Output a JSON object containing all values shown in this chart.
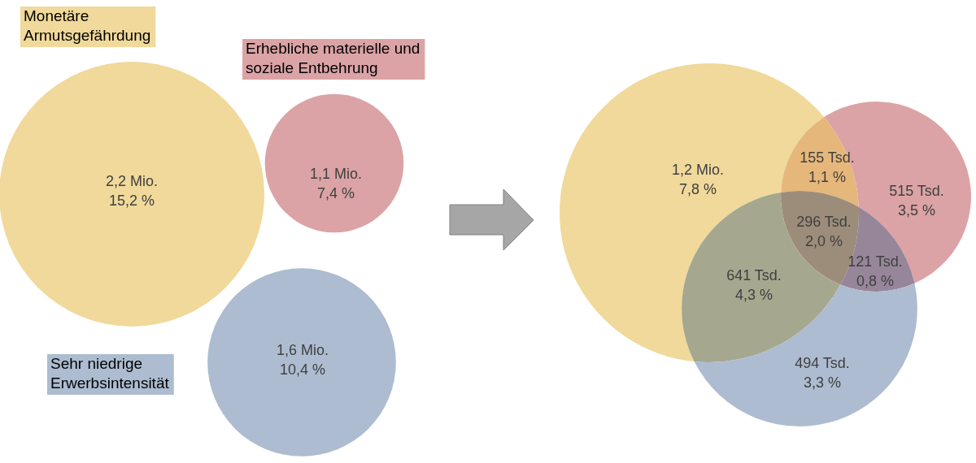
{
  "chart_data": [
    {
      "type": "other",
      "categories": [
        "Monetäre Armutsgefährdung",
        "Erhebliche materielle und soziale Entbehrung",
        "Sehr niedrige Erwerbsintensität"
      ],
      "values": [
        15.2,
        7.4,
        10.4
      ],
      "value_labels": [
        "2,2 Mio.\n15,2 %",
        "1,1 Mio.\n7,4 %",
        "1,6 Mio.\n10,4 %"
      ],
      "colors": [
        "#f0d99a",
        "#dba3a5",
        "#adbcd0"
      ]
    },
    {
      "type": "other",
      "categories": [
        null,
        null,
        null,
        null,
        null,
        null,
        null
      ],
      "values": [
        7.8,
        1.1,
        3.5,
        2.0,
        4.3,
        0.8,
        3.3
      ],
      "value_labels": [
        "1,2 Mio.\n7,8 %",
        "155 Tsd.\n1,1 %",
        "515 Tsd.\n3,5 %",
        "296 Tsd.\n2,0 %",
        "641 Tsd.\n4,3 %",
        "121 Tsd.\n0,8 %",
        "494 Tsd.\n3,3 %"
      ],
      "colors": [
        "#f0d99a",
        "#e6b77a",
        "#dba3a5",
        "#9c8d7a",
        "#a5a78f",
        "#978699",
        "#adbcd0"
      ]
    }
  ]
}
